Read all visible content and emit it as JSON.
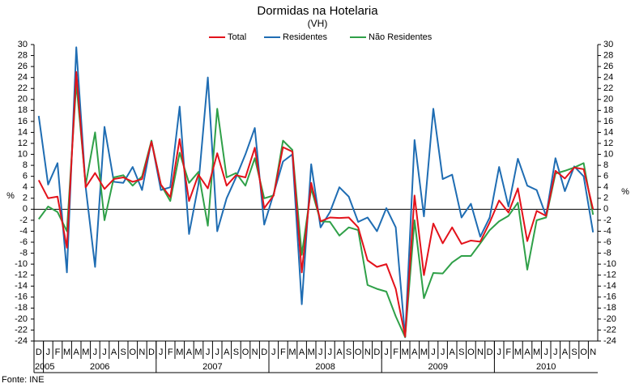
{
  "chart_data": {
    "type": "line",
    "title": "Dormidas na Hotelaria",
    "subtitle": "(VH)",
    "source": "Fonte: INE",
    "ylabel": "%",
    "y2label": "%",
    "categories": [
      "D",
      "J",
      "F",
      "M",
      "A",
      "M",
      "J",
      "J",
      "A",
      "S",
      "O",
      "N",
      "D",
      "J",
      "F",
      "M",
      "A",
      "M",
      "J",
      "J",
      "A",
      "S",
      "O",
      "N",
      "D",
      "J",
      "F",
      "M",
      "A",
      "M",
      "J",
      "J",
      "A",
      "S",
      "O",
      "N",
      "D",
      "J",
      "F",
      "M",
      "A",
      "M",
      "J",
      "J",
      "A",
      "S",
      "O",
      "N",
      "D",
      "J",
      "F",
      "M",
      "A",
      "M",
      "J",
      "J",
      "A",
      "S",
      "O",
      "N"
    ],
    "years": [
      "2005",
      "2006",
      "2007",
      "2008",
      "2009",
      "2010"
    ],
    "series": [
      {
        "name": "Total",
        "color": "#e3121b",
        "values": [
          5.3,
          2,
          2.3,
          -7,
          25,
          4,
          6.6,
          3.7,
          5.5,
          5.8,
          5,
          5.5,
          12.3,
          4.5,
          2.2,
          12.8,
          1.5,
          6.3,
          3.8,
          10.2,
          4.3,
          6.2,
          5.8,
          11.2,
          0.2,
          2.5,
          11.3,
          10.5,
          -11.5,
          4.8,
          -2.2,
          -1.5,
          -1.6,
          -1.5,
          -3.3,
          -9.3,
          -10.5,
          -10,
          -14.5,
          -23.2,
          2.5,
          -12,
          -2.6,
          -6.2,
          -3.3,
          -6.3,
          -5.7,
          -5.9,
          -2.4,
          1.6,
          -0.6,
          3.8,
          -5.8,
          -0.3,
          -1.2,
          7,
          5.6,
          7.6,
          7.3,
          0
        ]
      },
      {
        "name": "Residentes",
        "color": "#1f6db3",
        "values": [
          17,
          4.5,
          8.4,
          -11.5,
          29.5,
          4,
          -10.5,
          15,
          5,
          4.8,
          7.7,
          3.5,
          12.5,
          3.5,
          4,
          18.7,
          -4.5,
          4.5,
          24,
          -4,
          2,
          5.8,
          10,
          14.8,
          -2.8,
          2.8,
          8.7,
          10,
          -17.3,
          8.2,
          -3.3,
          -0.5,
          4,
          2.3,
          -2.3,
          -1.5,
          -4,
          0.2,
          -3.3,
          -23.3,
          12.6,
          -1.3,
          18.3,
          5.5,
          6.3,
          -1.5,
          1,
          -5,
          -1.5,
          7.7,
          0.5,
          9.2,
          4.3,
          3.5,
          -1.2,
          9.3,
          3.3,
          7.8,
          6,
          -4.2
        ]
      },
      {
        "name": "Não Residentes",
        "color": "#2fa048",
        "values": [
          -1.8,
          0.5,
          -0.5,
          -4,
          23,
          4.5,
          14,
          -2,
          5.8,
          6.2,
          4.3,
          6,
          12.5,
          4.5,
          1.5,
          10.3,
          4.8,
          6.8,
          -3,
          18.3,
          5.8,
          6.6,
          4.3,
          9.3,
          2,
          2.5,
          12.5,
          10.8,
          -8.3,
          3.8,
          -2.2,
          -2.3,
          -4.8,
          -3.3,
          -3.8,
          -13.8,
          -14.5,
          -15,
          -19.5,
          -23.3,
          -2,
          -16.2,
          -11.6,
          -11.7,
          -9.7,
          -8.5,
          -8.5,
          -6.2,
          -3.8,
          -2.2,
          -1.2,
          1.2,
          -11,
          -2,
          -1.5,
          6.5,
          7,
          7.6,
          8.4,
          -1
        ]
      }
    ],
    "ylim": [
      -24,
      30
    ],
    "yticks": [
      -24,
      -22,
      -20,
      -18,
      -16,
      -14,
      -12,
      -10,
      -8,
      -6,
      -4,
      -2,
      0,
      2,
      4,
      6,
      8,
      10,
      12,
      14,
      16,
      18,
      20,
      22,
      24,
      26,
      28,
      30
    ],
    "y2lim": [
      -24,
      30
    ],
    "y2ticks": [
      -24,
      -22,
      -20,
      -18,
      -16,
      -14,
      -12,
      -10,
      -8,
      -6,
      -4,
      -2,
      0,
      2,
      4,
      6,
      8,
      10,
      12,
      14,
      16,
      18,
      20,
      22,
      24,
      26,
      28,
      30
    ],
    "legend": "top"
  }
}
